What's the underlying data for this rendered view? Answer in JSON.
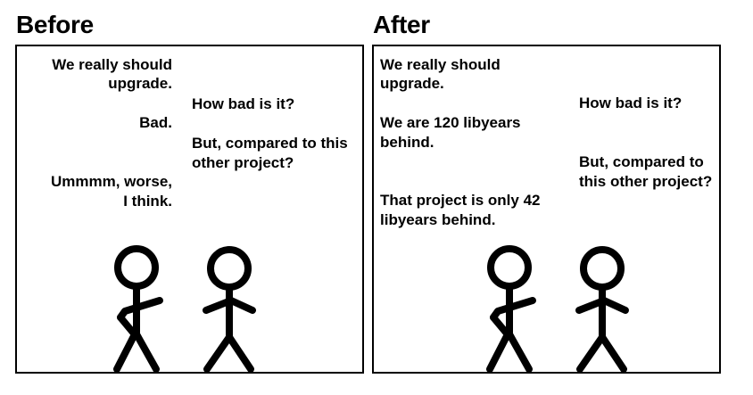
{
  "before": {
    "title": "Before",
    "dialogue": [
      {
        "speaker": "left",
        "lines": [
          "We really should",
          "upgrade."
        ]
      },
      {
        "speaker": "right",
        "lines": [
          "How bad is it?"
        ]
      },
      {
        "speaker": "left",
        "lines": [
          "Bad."
        ]
      },
      {
        "speaker": "right",
        "lines": [
          "But, compared to this",
          "other project?"
        ]
      },
      {
        "speaker": "left",
        "lines": [
          "Ummmm, worse,",
          "I think."
        ]
      }
    ]
  },
  "after": {
    "title": "After",
    "dialogue": [
      {
        "speaker": "left",
        "lines": [
          "We really should",
          "upgrade."
        ]
      },
      {
        "speaker": "right",
        "lines": [
          "How bad is it?"
        ]
      },
      {
        "speaker": "left",
        "lines": [
          "We are 120 libyears",
          "behind."
        ]
      },
      {
        "speaker": "right",
        "lines": [
          "But, compared to",
          "this other project?"
        ]
      },
      {
        "speaker": "left",
        "lines": [
          "That project is only 42",
          "libyears behind."
        ]
      }
    ]
  }
}
